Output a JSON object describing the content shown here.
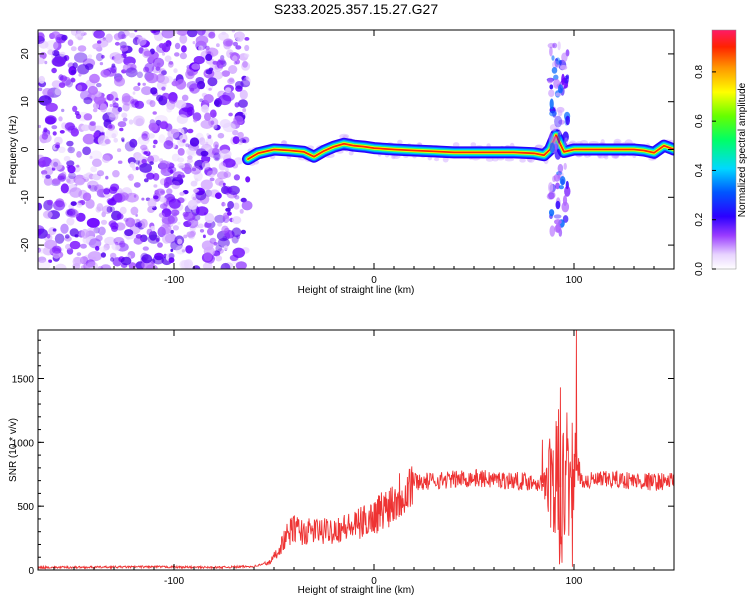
{
  "title": "S233.2025.357.15.27.G27",
  "chart_data": [
    {
      "type": "heatmap",
      "xlabel": "Height of straight line (km)",
      "ylabel": "Frequency (Hz)",
      "xlim": [
        -168,
        150
      ],
      "ylim": [
        -25,
        25
      ],
      "xticks": [
        -100,
        0,
        100
      ],
      "yticks": [
        -20,
        -10,
        0,
        10,
        20
      ],
      "noise_region_x": [
        -168,
        -63
      ],
      "signal_trace": {
        "x": [
          -63,
          -58,
          -50,
          -42,
          -35,
          -30,
          -25,
          -20,
          -15,
          -10,
          -5,
          0,
          10,
          20,
          30,
          40,
          50,
          60,
          70,
          80,
          85,
          88,
          91,
          95,
          100,
          110,
          120,
          130,
          135,
          140,
          145,
          150
        ],
        "frequency": [
          -2,
          -0.8,
          0,
          -0.2,
          -0.5,
          -1.5,
          -0.3,
          0.6,
          1.2,
          0.8,
          0.6,
          0.3,
          0,
          -0.2,
          -0.4,
          -0.6,
          -0.6,
          -0.6,
          -0.6,
          -0.8,
          -1.2,
          0,
          3,
          -0.5,
          0,
          0,
          0,
          0,
          -0.2,
          -0.7,
          0.8,
          0
        ],
        "disturbance_x": [
          88,
          97
        ]
      },
      "colorbar": {
        "label": "Normalized spectral amplitude",
        "ticks": [
          "0.0",
          "0.2",
          "0.4",
          "0.6",
          "0.8"
        ],
        "range": [
          0,
          0.97
        ]
      }
    },
    {
      "type": "line",
      "xlabel": "Height of straight line (km)",
      "ylabel": "SNR (10 * v/v)",
      "xlim": [
        -168,
        150
      ],
      "ylim": [
        0,
        1880
      ],
      "xticks": [
        -100,
        0,
        100
      ],
      "yticks": [
        0,
        500,
        1000,
        1500
      ],
      "color": "#ee3333",
      "series": [
        {
          "name": "SNR",
          "x": [
            -168,
            -140,
            -110,
            -80,
            -60,
            -52,
            -48,
            -44,
            -40,
            -35,
            -30,
            -25,
            -20,
            -15,
            -10,
            -5,
            0,
            5,
            10,
            15,
            20,
            25,
            30,
            40,
            50,
            60,
            70,
            80,
            85,
            90,
            95,
            100,
            105,
            110,
            120,
            130,
            140,
            150
          ],
          "values": [
            20,
            22,
            25,
            20,
            28,
            60,
            150,
            260,
            330,
            290,
            310,
            300,
            320,
            330,
            340,
            380,
            420,
            480,
            550,
            620,
            700,
            690,
            700,
            710,
            720,
            710,
            700,
            690,
            680,
            660,
            640,
            800,
            690,
            700,
            710,
            700,
            690,
            700
          ],
          "peaks": [
            [
              84,
              1020
            ],
            [
              93,
              1430
            ],
            [
              101,
              1880
            ],
            [
              99,
              25
            ]
          ]
        }
      ]
    }
  ]
}
